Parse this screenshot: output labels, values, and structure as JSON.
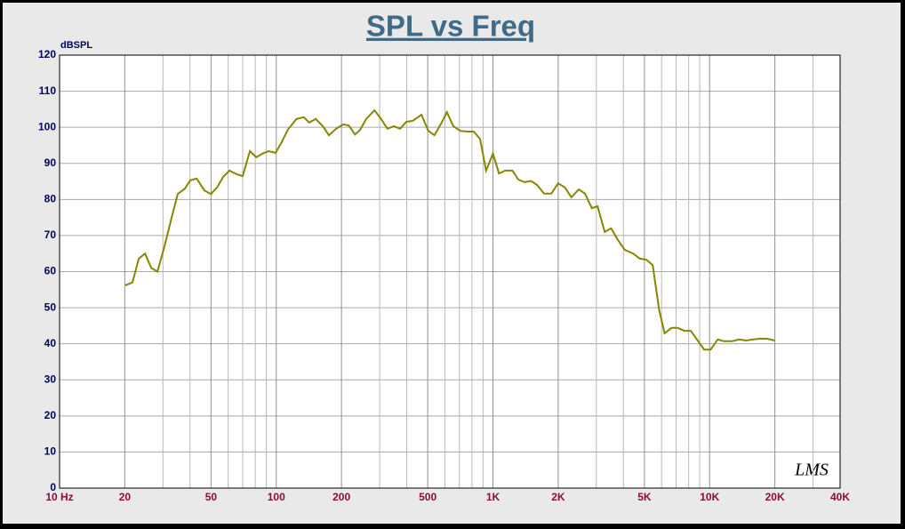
{
  "chart_data": {
    "type": "line",
    "title": "SPL vs Freq",
    "y_label": "dBSPL",
    "watermark": "LMS",
    "x_scale": "log",
    "grid": true,
    "xlim": [
      10,
      40000
    ],
    "xticks": [
      {
        "value": 10,
        "label": "10 Hz"
      },
      20,
      50,
      100,
      200,
      500,
      {
        "value": 1000,
        "label": "1K"
      },
      {
        "value": 2000,
        "label": "2K"
      },
      {
        "value": 5000,
        "label": "5K"
      },
      {
        "value": 10000,
        "label": "10K"
      },
      {
        "value": 20000,
        "label": "20K"
      },
      {
        "value": 40000,
        "label": "40K"
      }
    ],
    "minor_xticks": [
      30,
      40,
      60,
      70,
      80,
      90,
      300,
      400,
      600,
      700,
      800,
      900,
      3000,
      4000,
      6000,
      7000,
      8000,
      9000,
      30000
    ],
    "ylim": [
      0,
      120
    ],
    "yticks": [
      0,
      10,
      20,
      30,
      40,
      50,
      60,
      70,
      80,
      90,
      100,
      110,
      120
    ],
    "x": [
      20.1,
      21.7,
      23.2,
      24.8,
      26.5,
      28.3,
      30.5,
      32.9,
      35.1,
      37.9,
      40.1,
      42.9,
      46.6,
      49.9,
      53.3,
      57,
      60.8,
      65.6,
      70,
      75.6,
      80.9,
      86.3,
      92.2,
      99.3,
      106,
      113,
      124,
      134,
      142,
      152,
      164,
      175,
      189,
      204,
      216,
      231,
      244,
      260,
      284,
      303,
      326,
      349,
      373,
      398,
      426,
      468,
      503,
      537,
      580,
      613,
      656,
      707,
      763,
      815,
      872,
      930,
      1000,
      1066,
      1140,
      1230,
      1310,
      1400,
      1500,
      1600,
      1720,
      1860,
      2000,
      2150,
      2300,
      2490,
      2660,
      2860,
      3040,
      3280,
      3510,
      3770,
      4060,
      4440,
      4760,
      5100,
      5460,
      5850,
      6200,
      6670,
      7130,
      7640,
      8180,
      8810,
      9430,
      10100,
      10900,
      11600,
      12700,
      13700,
      14700,
      15900,
      17000,
      18400,
      20000
    ],
    "series": [
      {
        "color": "#868600",
        "values": [
          56.2,
          57,
          63.6,
          65,
          61,
          60,
          67,
          75,
          81.5,
          83,
          85.3,
          85.8,
          82.5,
          81.5,
          83.3,
          86.3,
          88,
          87,
          86.5,
          93.4,
          91.7,
          92.7,
          93.4,
          92.9,
          95.9,
          99.3,
          102.3,
          102.8,
          101.3,
          102.3,
          100.3,
          97.8,
          99.6,
          100.8,
          100.5,
          98,
          99.3,
          102.3,
          104.7,
          102.5,
          99.6,
          100.3,
          99.6,
          101.5,
          101.8,
          103.5,
          99,
          97.8,
          101.3,
          104.2,
          100.3,
          99,
          98.8,
          98.8,
          96.8,
          88,
          92.7,
          87.2,
          88,
          88,
          85.5,
          84.8,
          85.1,
          84,
          81.6,
          81.6,
          84.5,
          83.3,
          80.6,
          82.8,
          81.6,
          77.6,
          78.1,
          71,
          72,
          68.8,
          66,
          65,
          63.6,
          63.3,
          61.8,
          49.3,
          42.9,
          44.4,
          44.4,
          43.6,
          43.6,
          40.9,
          38.4,
          38.4,
          41.2,
          40.7,
          40.7,
          41.2,
          40.9,
          41.2,
          41.4,
          41.4,
          40.9
        ]
      }
    ]
  }
}
